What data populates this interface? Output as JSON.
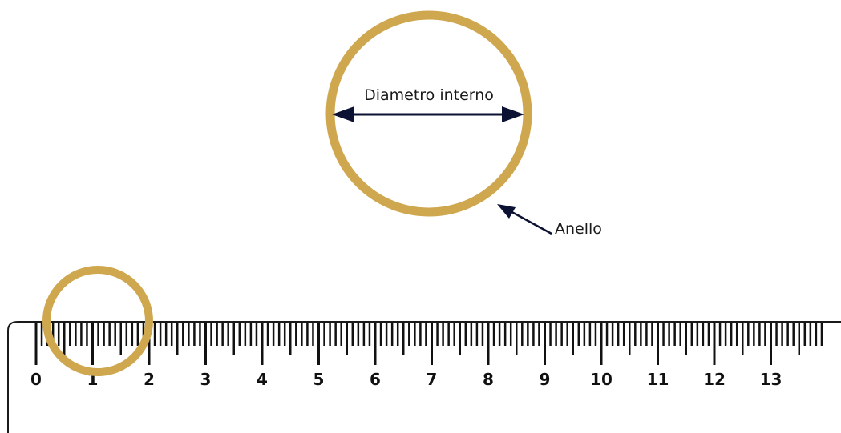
{
  "diagram": {
    "inner_diameter_label": "Diametro interno",
    "ring_label": "Anello",
    "ring_color": "#CFA74E",
    "arrow_color": "#0B1233",
    "ruler": {
      "numbers": [
        "0",
        "1",
        "2",
        "3",
        "4",
        "5",
        "6",
        "7",
        "8",
        "9",
        "10",
        "11",
        "12",
        "13"
      ]
    }
  }
}
